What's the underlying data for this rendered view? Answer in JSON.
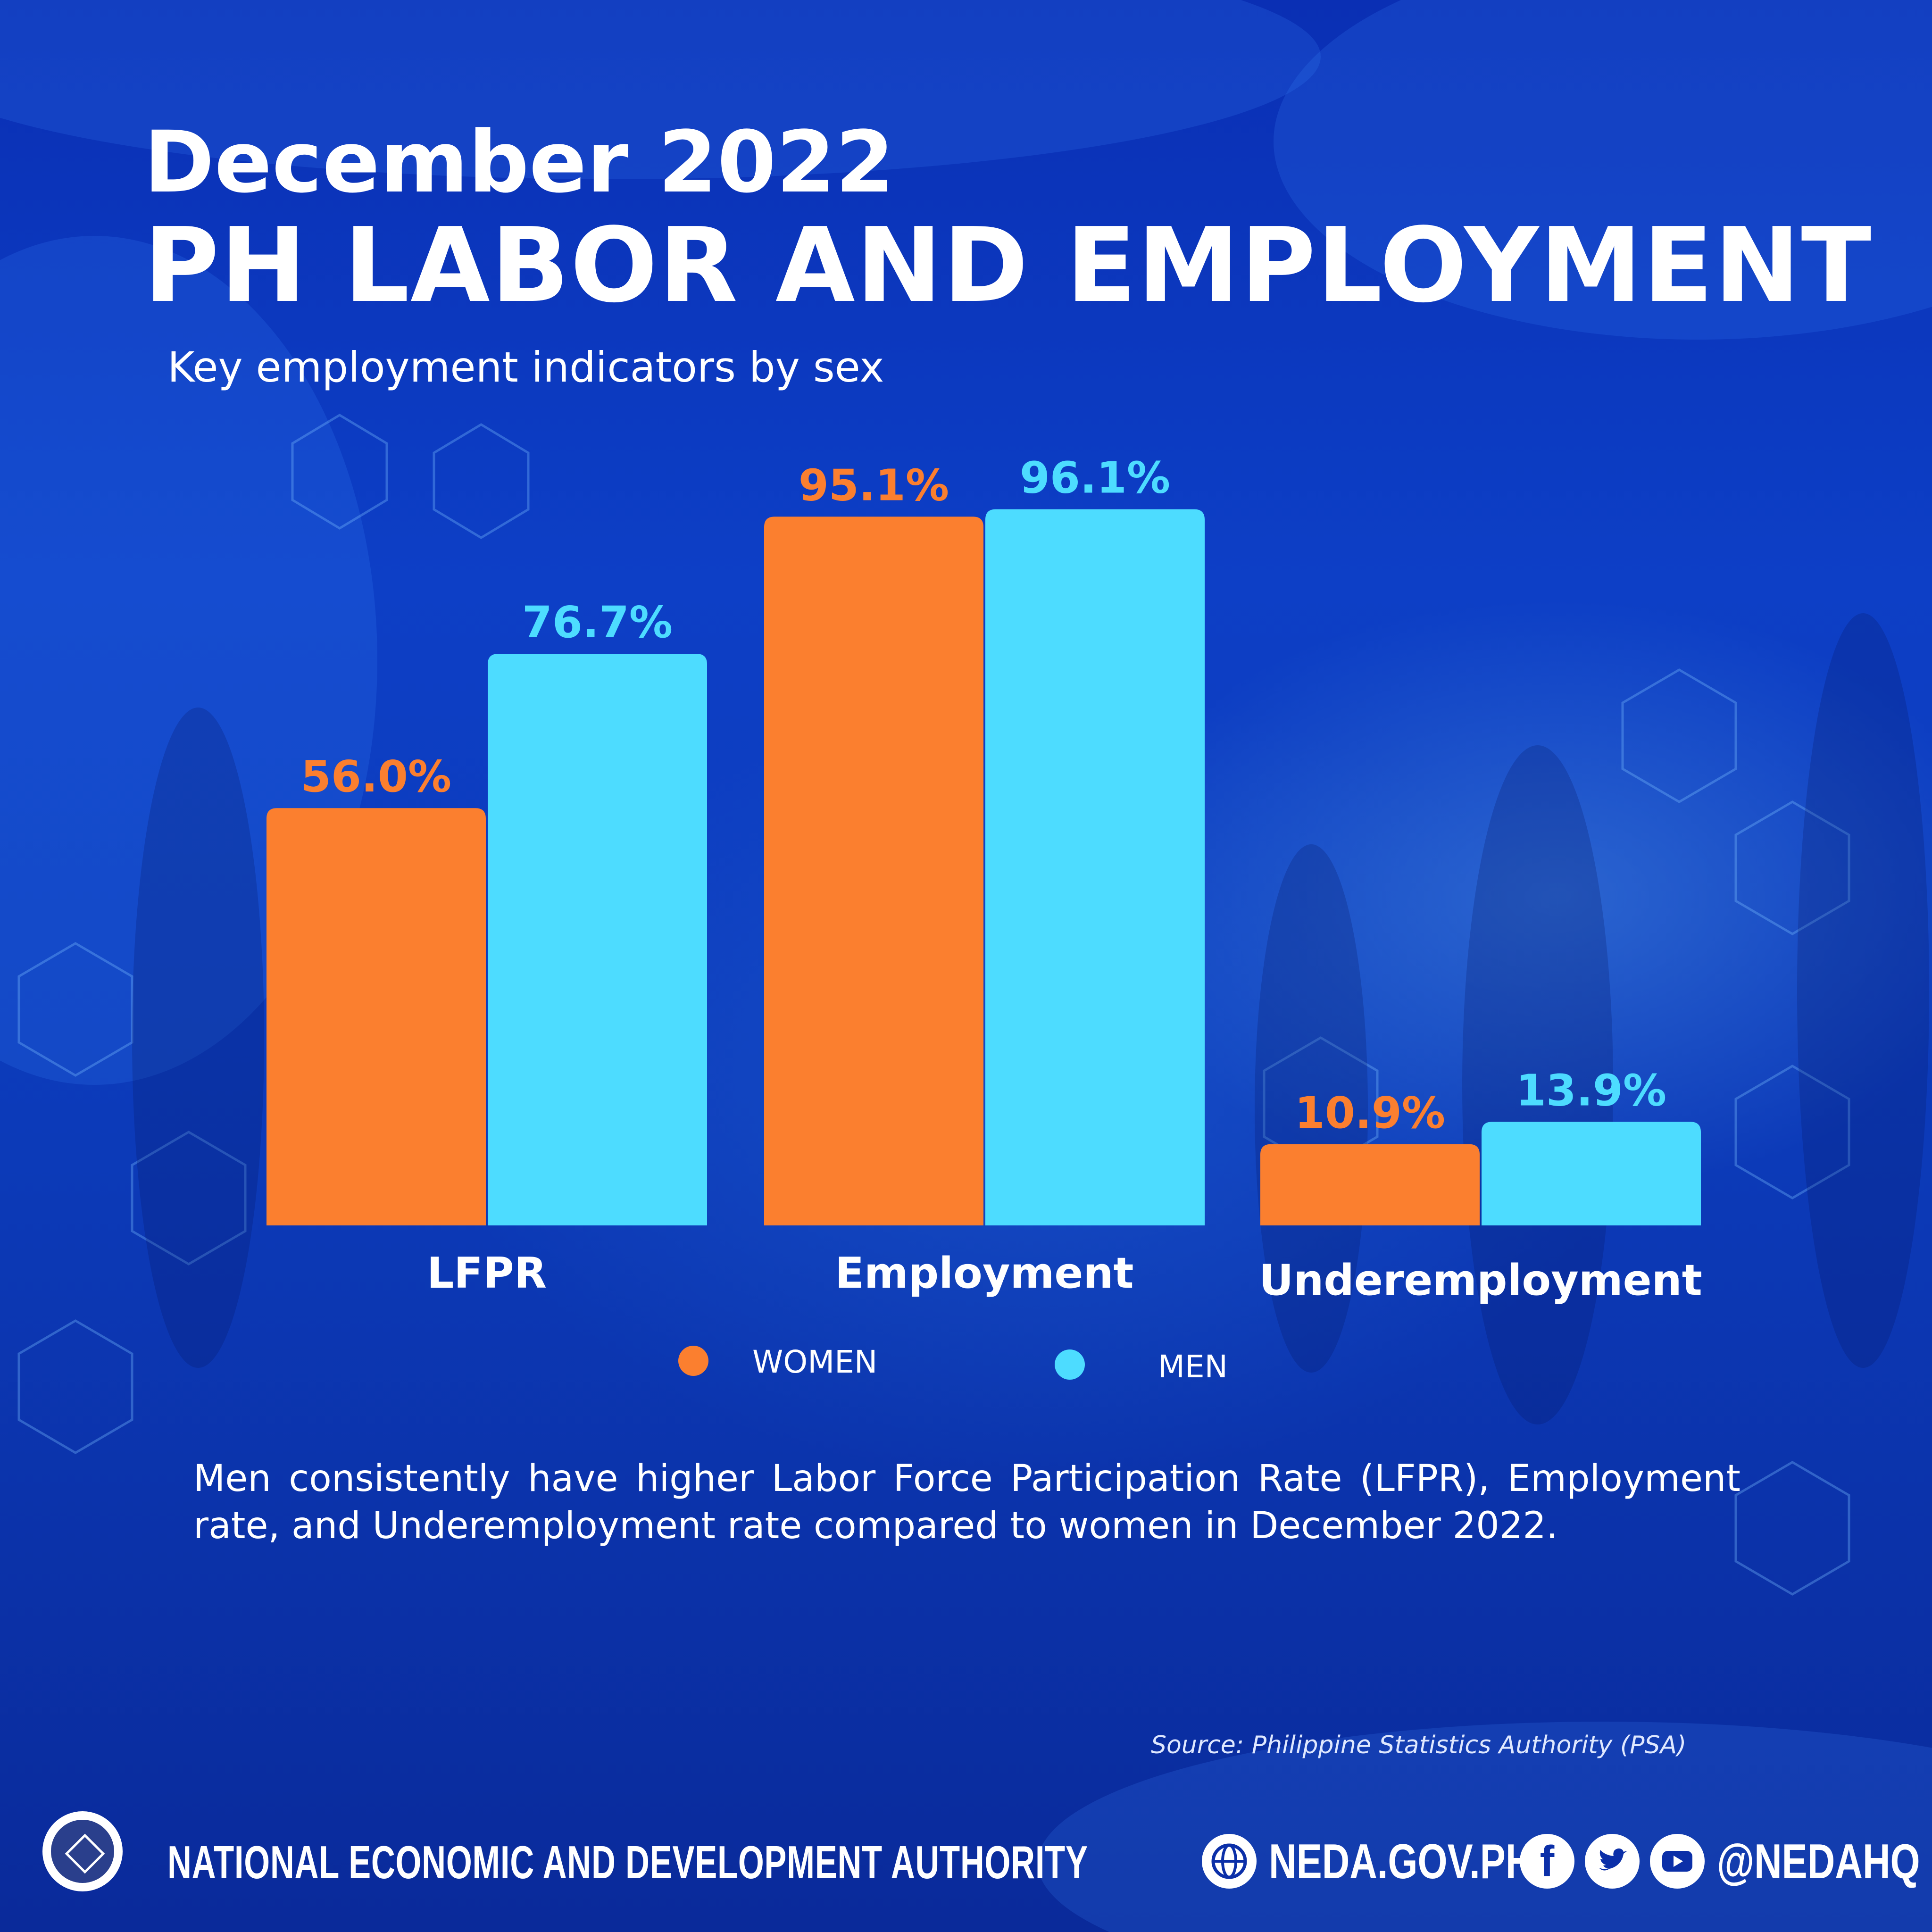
{
  "header": {
    "title_line1": "December 2022",
    "title_line2": "PH LABOR AND EMPLOYMENT",
    "subtitle": "Key employment indicators by sex"
  },
  "chart_data": {
    "type": "bar",
    "categories": [
      "LFPR",
      "Employment",
      "Underemployment"
    ],
    "series": [
      {
        "name": "WOMEN",
        "values": [
          56.0,
          95.1,
          10.9
        ],
        "labels": [
          "56.0%",
          "95.1%",
          "10.9%"
        ],
        "color": "#fb7f2f"
      },
      {
        "name": "MEN",
        "values": [
          76.7,
          96.1,
          13.9
        ],
        "labels": [
          "76.7%",
          "96.1%",
          "13.9%"
        ],
        "color": "#4ddcff"
      }
    ],
    "ylim": [
      0,
      100
    ],
    "grid": false,
    "legend": "bottom-center"
  },
  "note": "Men consistently have higher Labor Force Participation Rate (LFPR), Employment rate, and Underemployment rate compared to women in December 2022.",
  "source": "Source: Philippine Statistics Authority (PSA)",
  "footer": {
    "org_name": "NATIONAL ECONOMIC AND DEVELOPMENT AUTHORITY",
    "website": "NEDA.GOV.PH",
    "handle": "@NEDAHQ",
    "icons": [
      "neda-seal-icon",
      "globe-icon",
      "facebook-icon",
      "twitter-icon",
      "youtube-icon"
    ]
  }
}
